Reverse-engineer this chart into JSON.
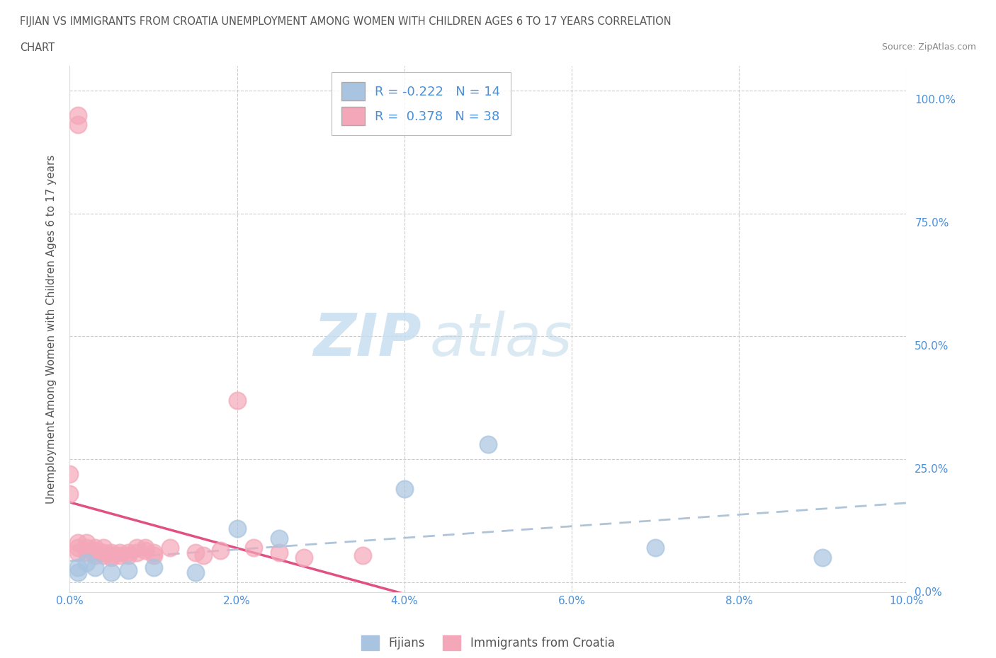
{
  "title_line1": "FIJIAN VS IMMIGRANTS FROM CROATIA UNEMPLOYMENT AMONG WOMEN WITH CHILDREN AGES 6 TO 17 YEARS CORRELATION",
  "title_line2": "CHART",
  "source": "Source: ZipAtlas.com",
  "ylabel": "Unemployment Among Women with Children Ages 6 to 17 years",
  "xlim": [
    0.0,
    0.1
  ],
  "ylim": [
    -0.02,
    1.05
  ],
  "yticks": [
    0.0,
    0.25,
    0.5,
    0.75,
    1.0
  ],
  "ytick_labels": [
    "0.0%",
    "25.0%",
    "50.0%",
    "75.0%",
    "100.0%"
  ],
  "xticks": [
    0.0,
    0.02,
    0.04,
    0.06,
    0.08,
    0.1
  ],
  "xtick_labels": [
    "0.0%",
    "2.0%",
    "4.0%",
    "6.0%",
    "8.0%",
    "10.0%"
  ],
  "fijian_color": "#a8c4e0",
  "croatia_color": "#f4a7b9",
  "fijian_line_color": "#4a90d9",
  "croatia_line_color": "#e05080",
  "fijian_R": -0.222,
  "fijian_N": 14,
  "croatia_R": 0.378,
  "croatia_N": 38,
  "legend_label1": "Fijians",
  "legend_label2": "Immigrants from Croatia",
  "watermark_ZIP": "ZIP",
  "watermark_atlas": "atlas",
  "fijian_x": [
    0.001,
    0.001,
    0.002,
    0.003,
    0.005,
    0.007,
    0.01,
    0.015,
    0.02,
    0.025,
    0.04,
    0.05,
    0.07,
    0.09
  ],
  "fijian_y": [
    0.03,
    0.02,
    0.04,
    0.03,
    0.02,
    0.025,
    0.03,
    0.02,
    0.11,
    0.09,
    0.19,
    0.28,
    0.07,
    0.05
  ],
  "croatia_x": [
    0.001,
    0.001,
    0.0,
    0.0,
    0.001,
    0.001,
    0.001,
    0.002,
    0.002,
    0.002,
    0.003,
    0.003,
    0.003,
    0.004,
    0.004,
    0.004,
    0.005,
    0.005,
    0.005,
    0.006,
    0.006,
    0.007,
    0.007,
    0.008,
    0.008,
    0.009,
    0.009,
    0.01,
    0.01,
    0.012,
    0.015,
    0.016,
    0.018,
    0.02,
    0.022,
    0.025,
    0.028,
    0.035
  ],
  "croatia_y": [
    0.95,
    0.93,
    0.22,
    0.18,
    0.08,
    0.07,
    0.06,
    0.08,
    0.07,
    0.06,
    0.07,
    0.065,
    0.055,
    0.07,
    0.06,
    0.055,
    0.06,
    0.055,
    0.05,
    0.06,
    0.055,
    0.06,
    0.055,
    0.07,
    0.06,
    0.07,
    0.065,
    0.06,
    0.055,
    0.07,
    0.06,
    0.055,
    0.065,
    0.37,
    0.07,
    0.06,
    0.05,
    0.055
  ]
}
